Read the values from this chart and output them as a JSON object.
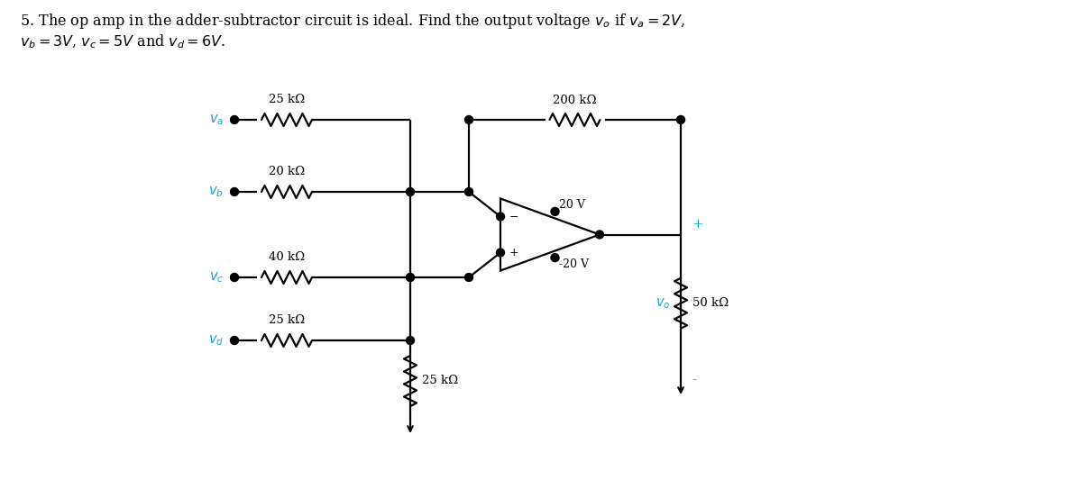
{
  "title_line1": "5. The op amp in the adder-subtractor circuit is ideal. Find the output voltage $v_o$ if $v_a = 2V$,",
  "title_line2": "$v_b = 3V$, $v_c = 5V$ and $v_d = 6V$.",
  "bg_color": "#ffffff",
  "line_color": "#000000",
  "label_color": "#1a9fd4",
  "text_color": "#000000",
  "va_label": "$v_a$",
  "vb_label": "$v_b$",
  "vc_label": "$v_c$",
  "vd_label": "$v_d$",
  "vo_label": "$v_o$",
  "R1_label": "25 kΩ",
  "R2_label": "20 kΩ",
  "R3_label": "200 kΩ",
  "R4_label": "40 kΩ",
  "R5_label": "25 kΩ",
  "R6_label": "25 kΩ",
  "R7_label": "50 kΩ",
  "vcc_label": "20 V",
  "vee_label": "-20 V",
  "plus_label": "+",
  "minus_label": "-"
}
